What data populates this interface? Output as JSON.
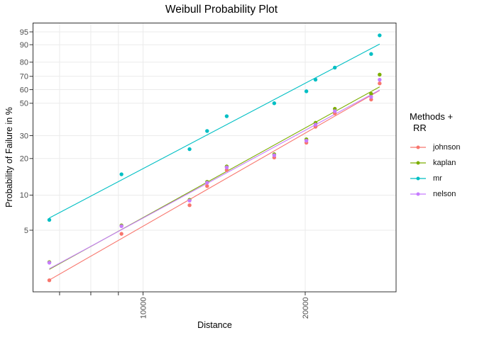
{
  "chart_data": {
    "type": "scatter",
    "title": "Weibull Probability Plot",
    "xlabel": "Distance",
    "ylabel": "Probability of Failure in %",
    "x_scale": "log10",
    "y_scale": "weibull-probability",
    "grid": true,
    "legend_position": "right",
    "legend_title_lines": [
      "Methods +",
      "RR"
    ],
    "x_ticks": [
      {
        "value": 7000,
        "label": ""
      },
      {
        "value": 8000,
        "label": ""
      },
      {
        "value": 9000,
        "label": ""
      },
      {
        "value": 10000,
        "label": "10000"
      },
      {
        "value": 20000,
        "label": "20000"
      }
    ],
    "y_ticks": [
      95,
      90,
      80,
      70,
      60,
      50,
      30,
      20,
      10,
      5
    ],
    "xlim": [
      6250,
      29500
    ],
    "ylim_percent": [
      1.4,
      96.8
    ],
    "distances": [
      6700,
      9120,
      12200,
      13150,
      14300,
      17520,
      20100,
      20900,
      22700,
      26510,
      27490
    ],
    "series": [
      {
        "name": "johnson",
        "color": "#F8766D",
        "percents": [
          1.82,
          4.65,
          8.21,
          11.91,
          16.15,
          20.38,
          26.56,
          34.81,
          43.06,
          52.68,
          64.7
        ],
        "fit_line": {
          "x": [
            6700,
            27490
          ],
          "percents": [
            1.83,
            59.4
          ]
        }
      },
      {
        "name": "kaplan",
        "color": "#7CAE00",
        "percents": [
          2.63,
          5.5,
          9.13,
          12.92,
          17.27,
          21.62,
          28.16,
          37.14,
          46.12,
          56.89,
          71.26
        ],
        "fit_line": {
          "x": [
            6700,
            27490
          ],
          "percents": [
            2.27,
            62.1
          ]
        }
      },
      {
        "name": "mr",
        "color": "#00BFC4",
        "percents": [
          6.14,
          14.91,
          23.68,
          32.46,
          41.23,
          50.0,
          58.77,
          67.54,
          76.32,
          85.09,
          93.86
        ],
        "fit_line": {
          "x": [
            6700,
            27490
          ],
          "percents": [
            6.38,
            90.3
          ]
        }
      },
      {
        "name": "nelson",
        "color": "#C77CFF",
        "percents": [
          2.6,
          5.42,
          8.99,
          12.7,
          16.96,
          21.22,
          27.52,
          36.03,
          44.55,
          54.6,
          67.47
        ],
        "fit_line": {
          "x": [
            6700,
            27490
          ],
          "percents": [
            2.3,
            59.7
          ]
        }
      }
    ],
    "panel": {
      "background": "#ffffff",
      "border_color": "#333333",
      "grid_color": "#EBEBEB",
      "tick_color": "#333333",
      "tick_label_color": "#4D4D4D"
    }
  }
}
